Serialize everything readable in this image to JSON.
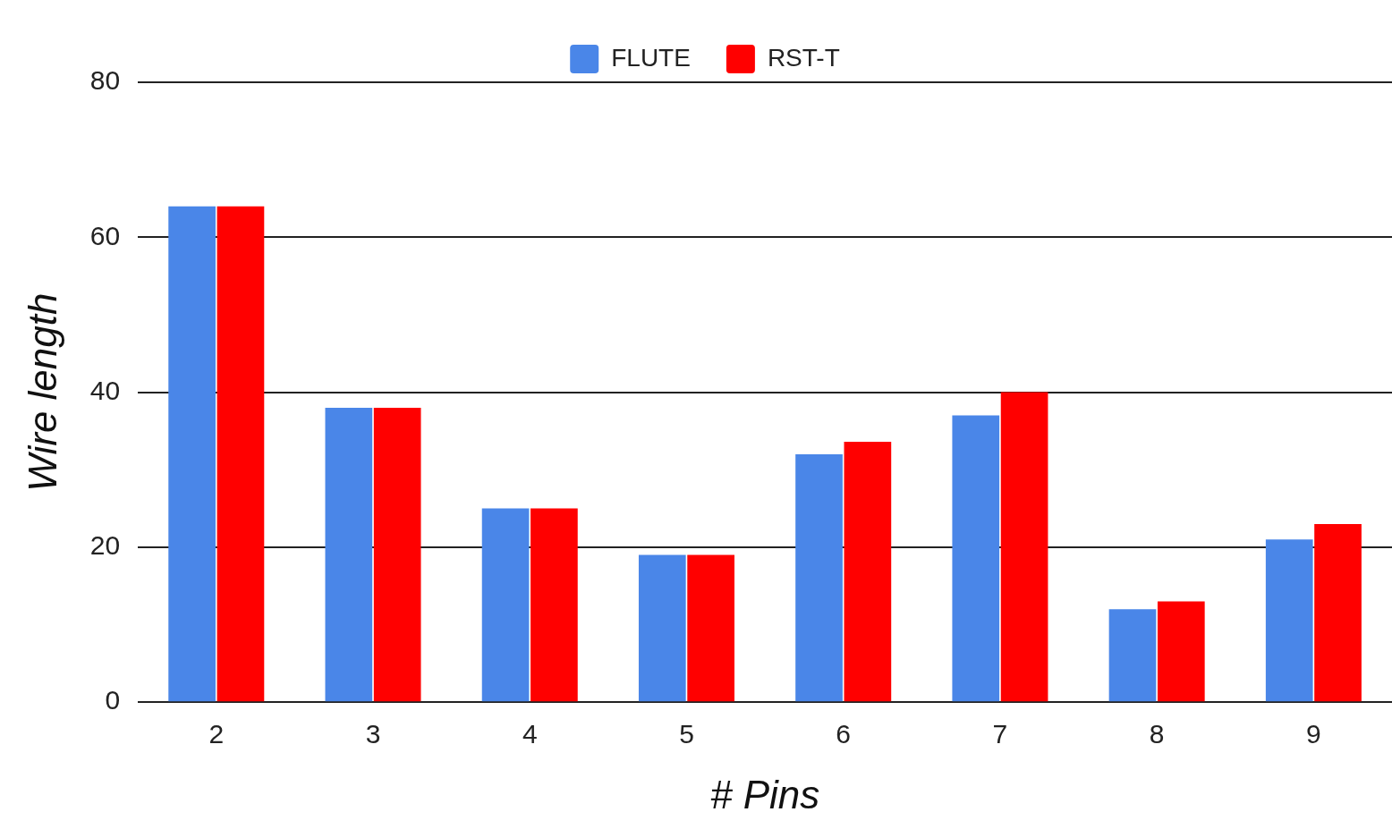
{
  "chart_data": {
    "type": "bar",
    "xlabel": "# Pins",
    "ylabel": "Wire length",
    "categories": [
      "2",
      "3",
      "4",
      "5",
      "6",
      "7",
      "8",
      "9"
    ],
    "series": [
      {
        "name": "FLUTE",
        "color": "#4a86e8",
        "values": [
          64,
          38,
          25,
          19,
          32,
          37,
          12,
          21
        ]
      },
      {
        "name": "RST-T",
        "color": "#ff0000",
        "values": [
          64,
          38,
          25,
          19,
          33.6,
          40,
          13,
          23
        ]
      }
    ],
    "ylim": [
      0,
      80
    ],
    "yticks": [
      0,
      20,
      40,
      60,
      80
    ],
    "grid": "y",
    "legend": "top"
  }
}
